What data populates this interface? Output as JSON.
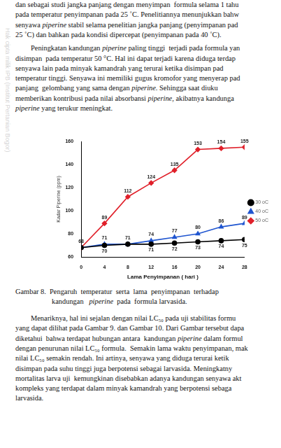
{
  "watermark": "Hak cipta milik IPB (Institut Pertanian Bogor)",
  "italic_terms": [
    "piperine"
  ],
  "top_text": [
    [
      "dan sebagai studi jangka panjang dengan menyimpan  formula selama 1 tahu",
      "pada temperatur penyimpanan pada 25 ˚C. Penelitiannya menunjukkan bahw",
      "senyawa piperine stabil selama penelitian jangka panjang (penyimpanan pad",
      "25 ˚C) dan bahkan pada kondisi dipercepat (penyimpanan pada 40 ˚C)."
    ],
    [
      "Peningkatan kandungan piperine paling tinggi  terjadi pada formula yan",
      "disimpan  pada temperatur 50 °C. Hal ini dapat terjadi karena diduga terdap",
      "senyawa lain pada minyak kamandrah yang terurai ketika disimpan pad",
      "temperatur tinggi. Senyawa ini memiliki gugus kromofor yang menyerap pad",
      "panjang  gelombang yang sama dengan piperine. Sehingga saat diuku",
      "memberikan kontribusi pada nilai absorbansi piperine, akibatnya kandunga",
      "piperine yang terukur meningkat."
    ]
  ],
  "chart_data": {
    "type": "line",
    "x_label": "Lama Penyimpanan ( hari )",
    "y_label": "Kadar Piperine (ppm)",
    "x": [
      0,
      4,
      8,
      12,
      16,
      20,
      24,
      28
    ],
    "xlim": [
      0,
      28
    ],
    "xticks": [
      0,
      4,
      8,
      12,
      16,
      20,
      24,
      28
    ],
    "ylim": [
      60,
      160
    ],
    "yticks": [
      60,
      80,
      100,
      120,
      140,
      160
    ],
    "grid": false,
    "legend": "right",
    "data_labels": true,
    "series": [
      {
        "name": "30 oC",
        "color": "#000000",
        "marker": "circle",
        "values": [
          68,
          70,
          71,
          71,
          72,
          73,
          74,
          75
        ]
      },
      {
        "name": "40 oC",
        "color": "#1f55d0",
        "marker": "triangle",
        "values": [
          68,
          71,
          71,
          74,
          77,
          80,
          86,
          89
        ]
      },
      {
        "name": "50 oC",
        "color": "#e0202a",
        "marker": "diamond",
        "values": [
          68,
          89,
          112,
          124,
          135,
          153,
          154,
          155
        ]
      }
    ]
  },
  "caption": [
    "Gambar 8.  Pengaruh  temperatur  serta  lama  penyimpanan  terhadap",
    "kandungan   piperine  pada  formula larvasida."
  ],
  "bottom_text": [
    [
      "Menariknya, hal ini sejalan dengan nilai LC₅₀ pada uji stabilitas formu",
      "yang dapat dilihat pada Gambar 9. dan Gambar 10. Dari Gambar tersebut dapa",
      "diketahui  bahwa terdapat hubungan antara  kandungan piperine dalam formul",
      "dengan penurunan nilai LC₅₀ formula.  Semakin lama waktu penyimpanan, mak",
      "nilai LC₅₀ semakin rendah. Ini artinya, senyawa yang diduga terurai ketik",
      "disimpan pada suhu tinggi juga berpotensi sebagai larvasida. Meningkatny",
      "mortalitas larva uji  kemungkinan disebabkan adanya kandungan senyawa akt",
      "kompleks yang terdapat dalam minyak kamandrah yang berpotensi sebaga",
      "larvasida."
    ]
  ]
}
